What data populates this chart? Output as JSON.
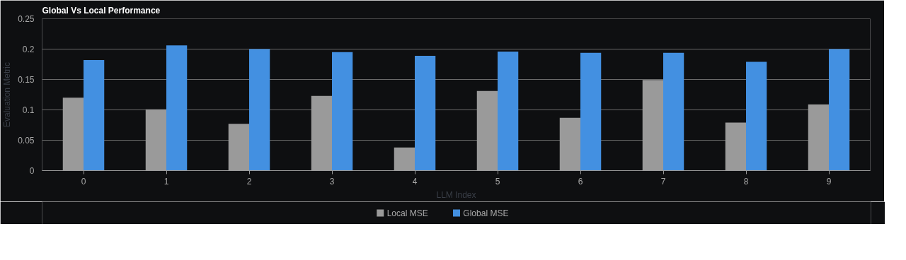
{
  "chart_data": {
    "type": "bar",
    "title": "Global Vs Local Performance",
    "xlabel": "LLM Index",
    "ylabel": "Evaluation Metric",
    "categories": [
      "0",
      "1",
      "2",
      "3",
      "4",
      "5",
      "6",
      "7",
      "8",
      "9"
    ],
    "series": [
      {
        "name": "Local MSE",
        "color": "#9a9a9a",
        "values": [
          0.12,
          0.101,
          0.077,
          0.123,
          0.038,
          0.131,
          0.087,
          0.149,
          0.079,
          0.109
        ]
      },
      {
        "name": "Global MSE",
        "color": "#4390e1",
        "values": [
          0.182,
          0.206,
          0.2,
          0.195,
          0.189,
          0.196,
          0.194,
          0.194,
          0.179,
          0.2
        ]
      }
    ],
    "ylim": [
      0,
      0.25
    ],
    "yticks": [
      0,
      0.05,
      0.1,
      0.15,
      0.2,
      0.25
    ],
    "grid": "y",
    "legend": "bottom"
  }
}
